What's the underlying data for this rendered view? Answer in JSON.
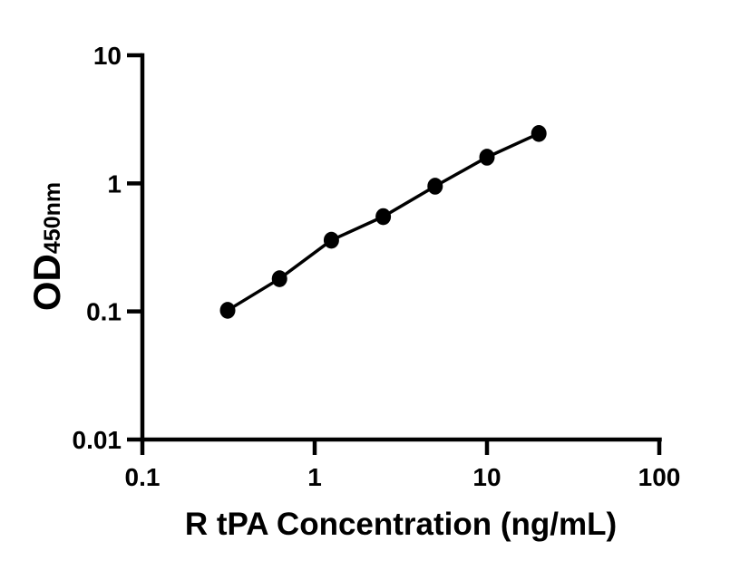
{
  "figure": {
    "background": "#ffffff",
    "ink_color": "#000000"
  },
  "chart_data": {
    "type": "scatter",
    "title": "",
    "xlabel": "R tPA Concentration (ng/mL)",
    "ylabel_main": "OD",
    "ylabel_sub": "450nm",
    "xscale": "log",
    "yscale": "log",
    "xlim": [
      0.1,
      100
    ],
    "ylim": [
      0.01,
      10
    ],
    "x_ticks": [
      0.1,
      1,
      10,
      100
    ],
    "x_tick_labels": [
      "0.1",
      "1",
      "10",
      "100"
    ],
    "y_ticks": [
      0.01,
      0.1,
      1,
      10
    ],
    "y_tick_labels": [
      "0.01",
      "0.1",
      "1",
      "10"
    ],
    "grid": false,
    "legend": null,
    "series": [
      {
        "marker": "filled-circle",
        "line": "solid",
        "color": "#000000",
        "points": [
          {
            "x": 0.3125,
            "y": 0.102
          },
          {
            "x": 0.625,
            "y": 0.18
          },
          {
            "x": 1.25,
            "y": 0.36
          },
          {
            "x": 2.5,
            "y": 0.55
          },
          {
            "x": 5,
            "y": 0.95
          },
          {
            "x": 10,
            "y": 1.6
          },
          {
            "x": 20,
            "y": 2.45
          }
        ]
      }
    ]
  }
}
